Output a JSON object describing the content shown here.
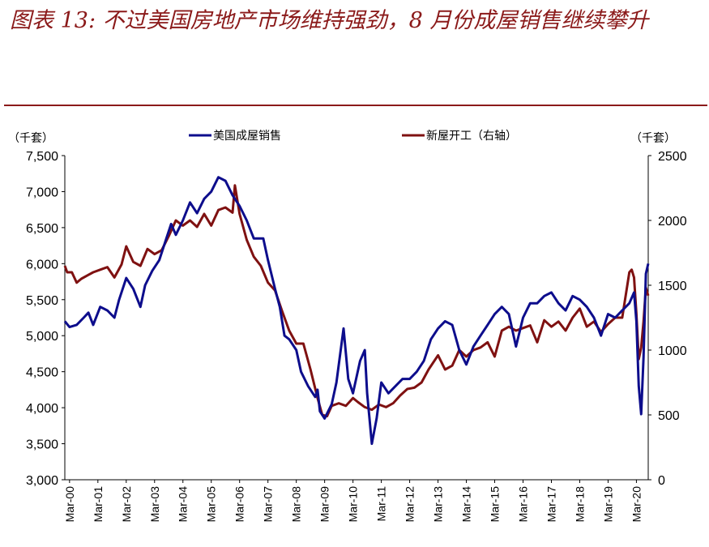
{
  "title": "图表 13:  不过美国房地产市场维持强劲，8 月份成屋销售继续攀升",
  "colors": {
    "title": "#8b1a1a",
    "existing": "#0d0d8c",
    "starts": "#7f1111"
  },
  "chart_data": {
    "type": "line",
    "left_unit": "（千套）",
    "right_unit": "（千套）",
    "legend_position": "top",
    "grid": false,
    "x_labels": [
      "Mar-00",
      "Mar-01",
      "Mar-02",
      "Mar-03",
      "Mar-04",
      "Mar-05",
      "Mar-06",
      "Mar-07",
      "Mar-08",
      "Mar-09",
      "Mar-10",
      "Mar-11",
      "Mar-12",
      "Mar-13",
      "Mar-14",
      "Mar-15",
      "Mar-16",
      "Mar-17",
      "Mar-18",
      "Mar-19",
      "Mar-20"
    ],
    "x_range": [
      "2000-01",
      "2020-08"
    ],
    "left_axis": {
      "min": 3000,
      "max": 7500,
      "ticks": [
        "3,000",
        "3,500",
        "4,000",
        "4,500",
        "5,000",
        "5,500",
        "6,000",
        "6,500",
        "7,000",
        "7,500"
      ]
    },
    "right_axis": {
      "min": 0,
      "max": 2500,
      "ticks": [
        "0",
        "500",
        "1000",
        "1500",
        "2000",
        "2500"
      ]
    },
    "series": [
      {
        "name": "美国成屋销售",
        "axis": "left",
        "points": [
          [
            "2000-01",
            5200
          ],
          [
            "2000-03",
            5120
          ],
          [
            "2000-06",
            5150
          ],
          [
            "2000-09",
            5250
          ],
          [
            "2000-11",
            5320
          ],
          [
            "2001-01",
            5150
          ],
          [
            "2001-04",
            5400
          ],
          [
            "2001-07",
            5350
          ],
          [
            "2001-10",
            5250
          ],
          [
            "2001-12",
            5500
          ],
          [
            "2002-03",
            5800
          ],
          [
            "2002-06",
            5650
          ],
          [
            "2002-09",
            5400
          ],
          [
            "2002-11",
            5700
          ],
          [
            "2003-02",
            5900
          ],
          [
            "2003-05",
            6050
          ],
          [
            "2003-08",
            6350
          ],
          [
            "2003-10",
            6550
          ],
          [
            "2003-12",
            6400
          ],
          [
            "2004-03",
            6600
          ],
          [
            "2004-06",
            6850
          ],
          [
            "2004-09",
            6700
          ],
          [
            "2004-12",
            6900
          ],
          [
            "2005-03",
            7000
          ],
          [
            "2005-06",
            7200
          ],
          [
            "2005-09",
            7150
          ],
          [
            "2005-12",
            6950
          ],
          [
            "2006-03",
            6800
          ],
          [
            "2006-06",
            6600
          ],
          [
            "2006-09",
            6350
          ],
          [
            "2006-11",
            6350
          ],
          [
            "2007-01",
            6350
          ],
          [
            "2007-03",
            6050
          ],
          [
            "2007-06",
            5650
          ],
          [
            "2007-08",
            5400
          ],
          [
            "2007-10",
            5000
          ],
          [
            "2007-12",
            4950
          ],
          [
            "2008-03",
            4800
          ],
          [
            "2008-05",
            4500
          ],
          [
            "2008-08",
            4300
          ],
          [
            "2008-11",
            4150
          ],
          [
            "2008-12",
            4250
          ],
          [
            "2009-01",
            3950
          ],
          [
            "2009-03",
            3850
          ],
          [
            "2009-06",
            4050
          ],
          [
            "2009-08",
            4350
          ],
          [
            "2009-11",
            5100
          ],
          [
            "2010-01",
            4400
          ],
          [
            "2010-03",
            4200
          ],
          [
            "2010-06",
            4650
          ],
          [
            "2010-08",
            4800
          ],
          [
            "2010-09",
            4200
          ],
          [
            "2010-11",
            3500
          ],
          [
            "2011-01",
            3850
          ],
          [
            "2011-03",
            4350
          ],
          [
            "2011-06",
            4200
          ],
          [
            "2011-09",
            4300
          ],
          [
            "2011-12",
            4400
          ],
          [
            "2012-03",
            4400
          ],
          [
            "2012-06",
            4500
          ],
          [
            "2012-09",
            4650
          ],
          [
            "2012-12",
            4950
          ],
          [
            "2013-03",
            5100
          ],
          [
            "2013-06",
            5200
          ],
          [
            "2013-09",
            5150
          ],
          [
            "2013-12",
            4800
          ],
          [
            "2014-03",
            4600
          ],
          [
            "2014-06",
            4850
          ],
          [
            "2014-09",
            5000
          ],
          [
            "2014-12",
            5150
          ],
          [
            "2015-03",
            5300
          ],
          [
            "2015-06",
            5400
          ],
          [
            "2015-09",
            5300
          ],
          [
            "2015-12",
            4850
          ],
          [
            "2016-03",
            5250
          ],
          [
            "2016-06",
            5450
          ],
          [
            "2016-09",
            5450
          ],
          [
            "2016-12",
            5550
          ],
          [
            "2017-03",
            5600
          ],
          [
            "2017-06",
            5450
          ],
          [
            "2017-09",
            5350
          ],
          [
            "2017-12",
            5550
          ],
          [
            "2018-03",
            5500
          ],
          [
            "2018-06",
            5400
          ],
          [
            "2018-09",
            5250
          ],
          [
            "2018-12",
            5000
          ],
          [
            "2019-03",
            5300
          ],
          [
            "2019-06",
            5250
          ],
          [
            "2019-09",
            5350
          ],
          [
            "2019-12",
            5450
          ],
          [
            "2020-02",
            5600
          ],
          [
            "2020-03",
            5200
          ],
          [
            "2020-04",
            4300
          ],
          [
            "2020-05",
            3910
          ],
          [
            "2020-06",
            4700
          ],
          [
            "2020-07",
            5860
          ],
          [
            "2020-08",
            6000
          ]
        ]
      },
      {
        "name": "新屋开工（右轴）",
        "axis": "right",
        "points": [
          [
            "2000-01",
            1650
          ],
          [
            "2000-02",
            1600
          ],
          [
            "2000-04",
            1600
          ],
          [
            "2000-06",
            1520
          ],
          [
            "2000-08",
            1550
          ],
          [
            "2000-11",
            1580
          ],
          [
            "2001-01",
            1600
          ],
          [
            "2001-04",
            1620
          ],
          [
            "2001-07",
            1640
          ],
          [
            "2001-10",
            1560
          ],
          [
            "2002-01",
            1660
          ],
          [
            "2002-03",
            1800
          ],
          [
            "2002-06",
            1680
          ],
          [
            "2002-09",
            1650
          ],
          [
            "2002-12",
            1780
          ],
          [
            "2003-03",
            1740
          ],
          [
            "2003-06",
            1770
          ],
          [
            "2003-09",
            1880
          ],
          [
            "2003-12",
            2000
          ],
          [
            "2004-03",
            1960
          ],
          [
            "2004-06",
            2000
          ],
          [
            "2004-09",
            1950
          ],
          [
            "2004-12",
            2050
          ],
          [
            "2005-03",
            1960
          ],
          [
            "2005-06",
            2080
          ],
          [
            "2005-09",
            2100
          ],
          [
            "2005-12",
            2060
          ],
          [
            "2006-01",
            2270
          ],
          [
            "2006-03",
            2050
          ],
          [
            "2006-06",
            1850
          ],
          [
            "2006-09",
            1720
          ],
          [
            "2006-12",
            1650
          ],
          [
            "2007-03",
            1520
          ],
          [
            "2007-06",
            1460
          ],
          [
            "2007-09",
            1300
          ],
          [
            "2007-12",
            1150
          ],
          [
            "2008-03",
            1050
          ],
          [
            "2008-06",
            1050
          ],
          [
            "2008-09",
            850
          ],
          [
            "2008-12",
            630
          ],
          [
            "2009-02",
            500
          ],
          [
            "2009-04",
            490
          ],
          [
            "2009-06",
            570
          ],
          [
            "2009-09",
            590
          ],
          [
            "2009-12",
            570
          ],
          [
            "2010-03",
            630
          ],
          [
            "2010-05",
            600
          ],
          [
            "2010-08",
            560
          ],
          [
            "2010-11",
            540
          ],
          [
            "2011-02",
            580
          ],
          [
            "2011-05",
            560
          ],
          [
            "2011-08",
            590
          ],
          [
            "2011-11",
            650
          ],
          [
            "2012-02",
            700
          ],
          [
            "2012-05",
            710
          ],
          [
            "2012-08",
            750
          ],
          [
            "2012-11",
            850
          ],
          [
            "2013-03",
            960
          ],
          [
            "2013-06",
            850
          ],
          [
            "2013-09",
            880
          ],
          [
            "2013-12",
            1000
          ],
          [
            "2014-03",
            950
          ],
          [
            "2014-06",
            1000
          ],
          [
            "2014-09",
            1020
          ],
          [
            "2014-12",
            1060
          ],
          [
            "2015-03",
            950
          ],
          [
            "2015-06",
            1150
          ],
          [
            "2015-09",
            1180
          ],
          [
            "2015-12",
            1150
          ],
          [
            "2016-03",
            1170
          ],
          [
            "2016-06",
            1190
          ],
          [
            "2016-09",
            1060
          ],
          [
            "2016-12",
            1230
          ],
          [
            "2017-03",
            1180
          ],
          [
            "2017-06",
            1220
          ],
          [
            "2017-09",
            1150
          ],
          [
            "2017-12",
            1250
          ],
          [
            "2018-03",
            1320
          ],
          [
            "2018-06",
            1180
          ],
          [
            "2018-09",
            1220
          ],
          [
            "2018-12",
            1140
          ],
          [
            "2019-03",
            1200
          ],
          [
            "2019-06",
            1250
          ],
          [
            "2019-09",
            1250
          ],
          [
            "2019-12",
            1600
          ],
          [
            "2020-01",
            1620
          ],
          [
            "2020-02",
            1560
          ],
          [
            "2020-03",
            1280
          ],
          [
            "2020-04",
            930
          ],
          [
            "2020-05",
            1020
          ],
          [
            "2020-06",
            1220
          ],
          [
            "2020-07",
            1480
          ],
          [
            "2020-08",
            1420
          ]
        ]
      }
    ]
  }
}
